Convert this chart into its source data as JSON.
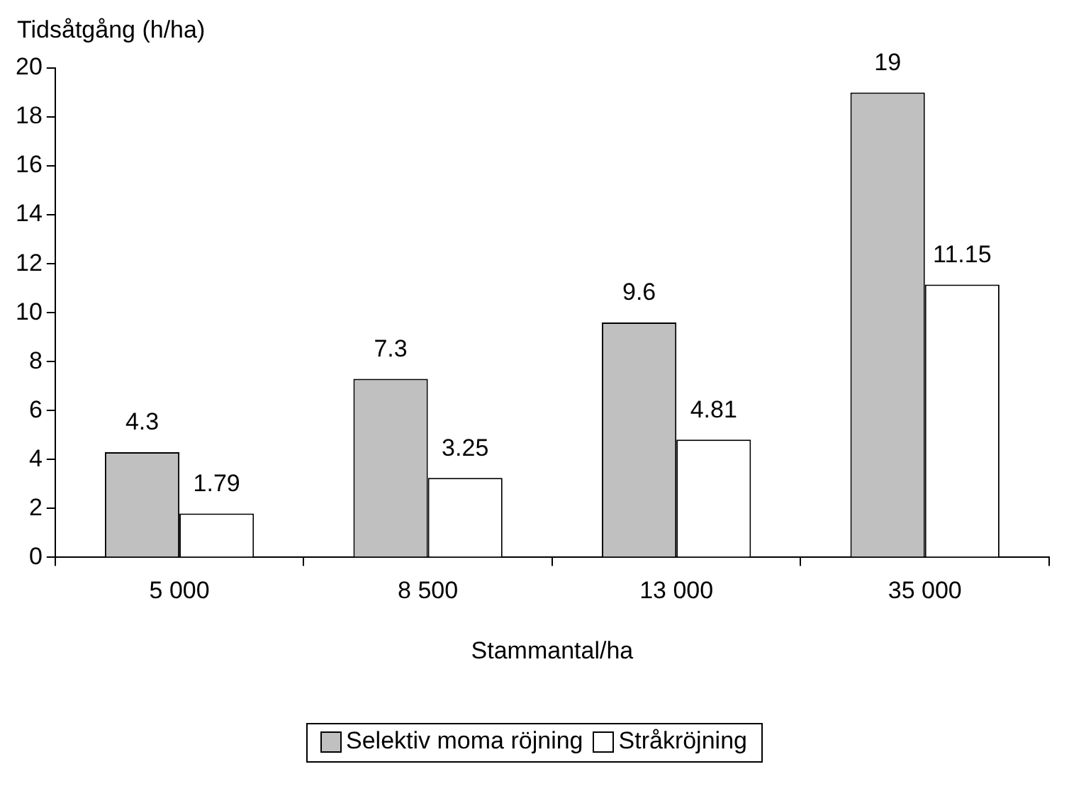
{
  "chart_data": {
    "type": "bar",
    "ylabel": "Tidsåtgång (h/ha)",
    "xlabel": "Stammantal/ha",
    "categories": [
      "5 000",
      "8 500",
      "13 000",
      "35 000"
    ],
    "series": [
      {
        "name": "Selektiv moma röjning",
        "color": "#c0c0c0",
        "values": [
          4.3,
          7.3,
          9.6,
          19
        ]
      },
      {
        "name": "Stråkröjning",
        "color": "#ffffff",
        "values": [
          1.79,
          3.25,
          4.81,
          11.15
        ]
      }
    ],
    "ylim": [
      0,
      20
    ],
    "yticks": [
      0,
      2,
      4,
      6,
      8,
      10,
      12,
      14,
      16,
      18,
      20
    ],
    "grid": false,
    "legend": "bottom",
    "data_labels": true
  }
}
